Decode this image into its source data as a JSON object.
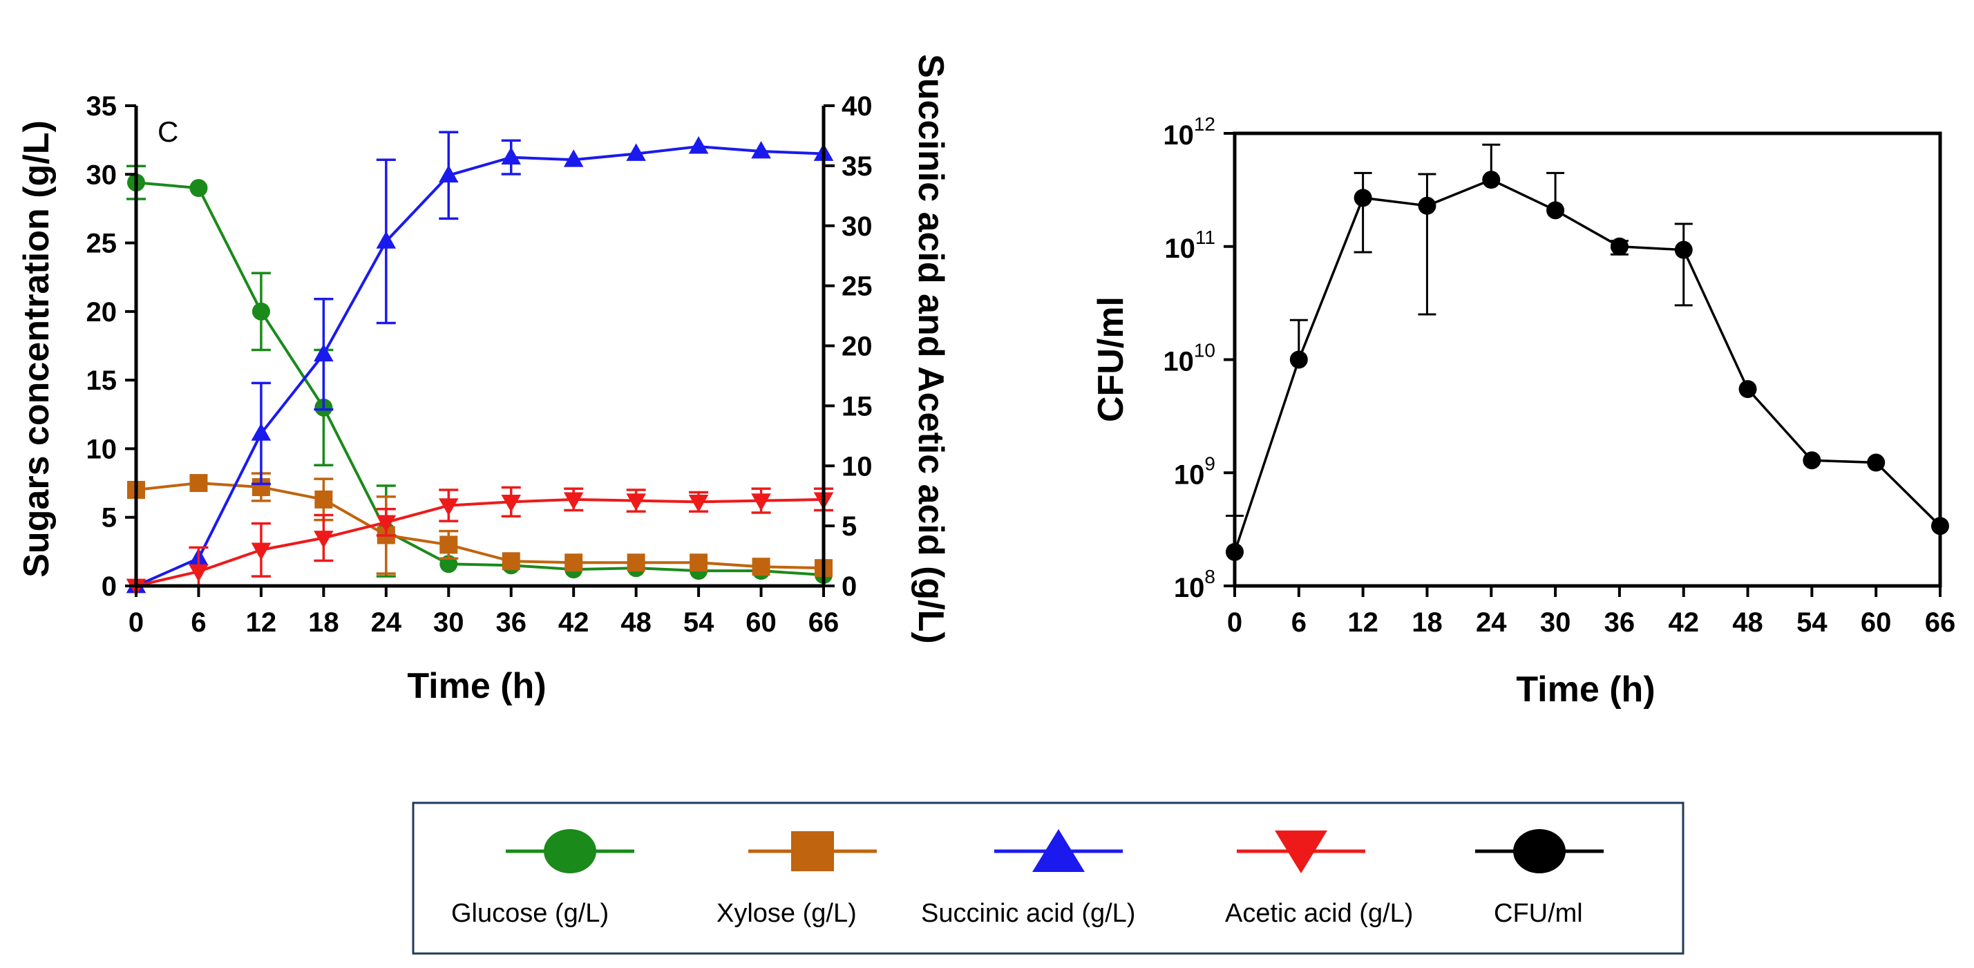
{
  "chart_data": [
    {
      "type": "line",
      "panel_label": "C",
      "xlabel": "Time (h)",
      "ylabel": "Sugars concentration (g/L)",
      "y2label": "Succinic acid and Acetic acid (g/L)",
      "x": [
        0,
        6,
        12,
        18,
        24,
        30,
        36,
        42,
        48,
        54,
        60,
        66
      ],
      "xticks": [
        "0",
        "6",
        "12",
        "18",
        "24",
        "30",
        "36",
        "42",
        "48",
        "54",
        "60",
        "66"
      ],
      "xlim": [
        0,
        66
      ],
      "ylim": [
        0,
        35
      ],
      "yticks": [
        "0",
        "5",
        "10",
        "15",
        "20",
        "25",
        "30",
        "35"
      ],
      "y2lim": [
        0,
        40
      ],
      "y2ticks": [
        "0",
        "5",
        "10",
        "15",
        "20",
        "25",
        "30",
        "35",
        "40"
      ],
      "series": [
        {
          "name": "Glucose (g/L)",
          "axis": "left",
          "color": "#1a8a1a",
          "marker": "circle",
          "values": [
            29.4,
            29.0,
            20.0,
            13.0,
            4.0,
            1.6,
            1.5,
            1.2,
            1.3,
            1.1,
            1.1,
            0.8
          ],
          "errors": [
            1.2,
            0,
            2.8,
            4.2,
            3.3,
            0,
            0,
            0,
            0,
            0,
            0,
            0
          ]
        },
        {
          "name": "Xylose (g/L)",
          "axis": "left",
          "color": "#c0640f",
          "marker": "square",
          "values": [
            7.0,
            7.5,
            7.2,
            6.3,
            3.7,
            3.0,
            1.8,
            1.7,
            1.7,
            1.7,
            1.4,
            1.3
          ],
          "errors": [
            0,
            0,
            1.0,
            1.5,
            2.8,
            1.0,
            0,
            0,
            0,
            0,
            0,
            0
          ]
        },
        {
          "name": "Succinic acid (g/L)",
          "axis": "right",
          "color": "#1a1aee",
          "marker": "triangle-up",
          "values": [
            0,
            2.3,
            12.7,
            19.3,
            28.7,
            34.2,
            35.7,
            35.5,
            36.0,
            36.6,
            36.2,
            36.0
          ],
          "errors": [
            0,
            0,
            4.2,
            4.6,
            6.8,
            3.6,
            1.4,
            0,
            0,
            0,
            0,
            0
          ]
        },
        {
          "name": "Acetic acid (g/L)",
          "axis": "right",
          "color": "#ee1a1a",
          "marker": "triangle-down",
          "values": [
            0,
            1.2,
            3.0,
            4.0,
            5.3,
            6.7,
            7.0,
            7.2,
            7.1,
            7.0,
            7.1,
            7.2
          ],
          "errors": [
            0,
            2.0,
            2.2,
            1.9,
            1.1,
            1.3,
            1.2,
            0.9,
            0.9,
            0.8,
            1.0,
            0.9
          ]
        }
      ]
    },
    {
      "type": "line",
      "xlabel": "Time (h)",
      "ylabel": "CFU/ml",
      "yscale": "log",
      "x": [
        0,
        6,
        12,
        18,
        24,
        30,
        36,
        42,
        48,
        54,
        60,
        66
      ],
      "xticks": [
        "0",
        "6",
        "12",
        "18",
        "24",
        "30",
        "36",
        "42",
        "48",
        "54",
        "60",
        "66"
      ],
      "xlim": [
        0,
        66
      ],
      "ylim_log10": [
        8,
        12
      ],
      "yticks": [
        {
          "base": "10",
          "exp": "8"
        },
        {
          "base": "10",
          "exp": "9"
        },
        {
          "base": "10",
          "exp": "10"
        },
        {
          "base": "10",
          "exp": "11"
        },
        {
          "base": "10",
          "exp": "12"
        }
      ],
      "series": [
        {
          "name": "CFU/ml",
          "color": "#000000",
          "marker": "circle",
          "log10_values": [
            8.3,
            10.0,
            11.43,
            11.36,
            11.59,
            11.32,
            11.0,
            10.97,
            9.74,
            9.11,
            9.09,
            8.53
          ],
          "log10_err_high": [
            8.62,
            10.35,
            11.65,
            11.64,
            11.9,
            11.65,
            11.05,
            11.2,
            null,
            null,
            null,
            null
          ],
          "log10_err_low": [
            null,
            null,
            10.95,
            10.4,
            null,
            null,
            10.93,
            10.48,
            null,
            null,
            null,
            null
          ]
        }
      ]
    }
  ],
  "legend": {
    "items": [
      {
        "label": "Glucose (g/L)",
        "color": "#1a8a1a",
        "marker": "circle"
      },
      {
        "label": "Xylose (g/L)",
        "color": "#c0640f",
        "marker": "square"
      },
      {
        "label": "Succinic acid (g/L)",
        "color": "#1a1aee",
        "marker": "triangle-up"
      },
      {
        "label": "Acetic acid (g/L)",
        "color": "#ee1a1a",
        "marker": "triangle-down"
      },
      {
        "label": "CFU/ml",
        "color": "#000000",
        "marker": "circle"
      }
    ],
    "border_color": "#1f3a5a"
  }
}
